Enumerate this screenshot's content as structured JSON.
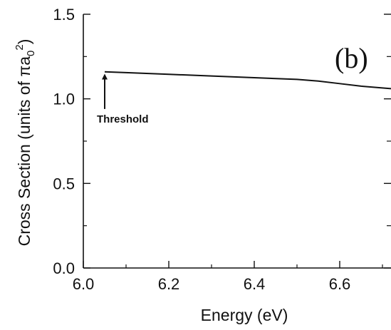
{
  "chart_data": {
    "type": "line",
    "panel_label": "(b)",
    "xlabel": "Energy (eV)",
    "ylabel_main": "Cross Section (units of πa",
    "ylabel_sub": "0",
    "ylabel_sup": "2",
    "ylabel_close": ")",
    "xlim": [
      6.0,
      6.72
    ],
    "ylim": [
      0.0,
      1.5
    ],
    "x_ticks": [
      6.0,
      6.2,
      6.4,
      6.6
    ],
    "x_tick_labels": [
      "6.0",
      "6.2",
      "6.4",
      "6.6"
    ],
    "y_ticks": [
      0.0,
      0.5,
      1.0,
      1.5
    ],
    "y_tick_labels": [
      "0.0",
      "0.5",
      "1.0",
      "1.5"
    ],
    "grid": false,
    "series": [
      {
        "x": [
          6.05,
          6.1,
          6.2,
          6.3,
          6.4,
          6.5,
          6.55,
          6.6,
          6.65,
          6.72
        ],
        "y": [
          1.16,
          1.155,
          1.145,
          1.135,
          1.125,
          1.115,
          1.105,
          1.09,
          1.075,
          1.06
        ]
      }
    ],
    "annotation": {
      "text": "Threshold",
      "x": 6.05,
      "y_from": 0.94,
      "y_to": 1.14
    }
  }
}
